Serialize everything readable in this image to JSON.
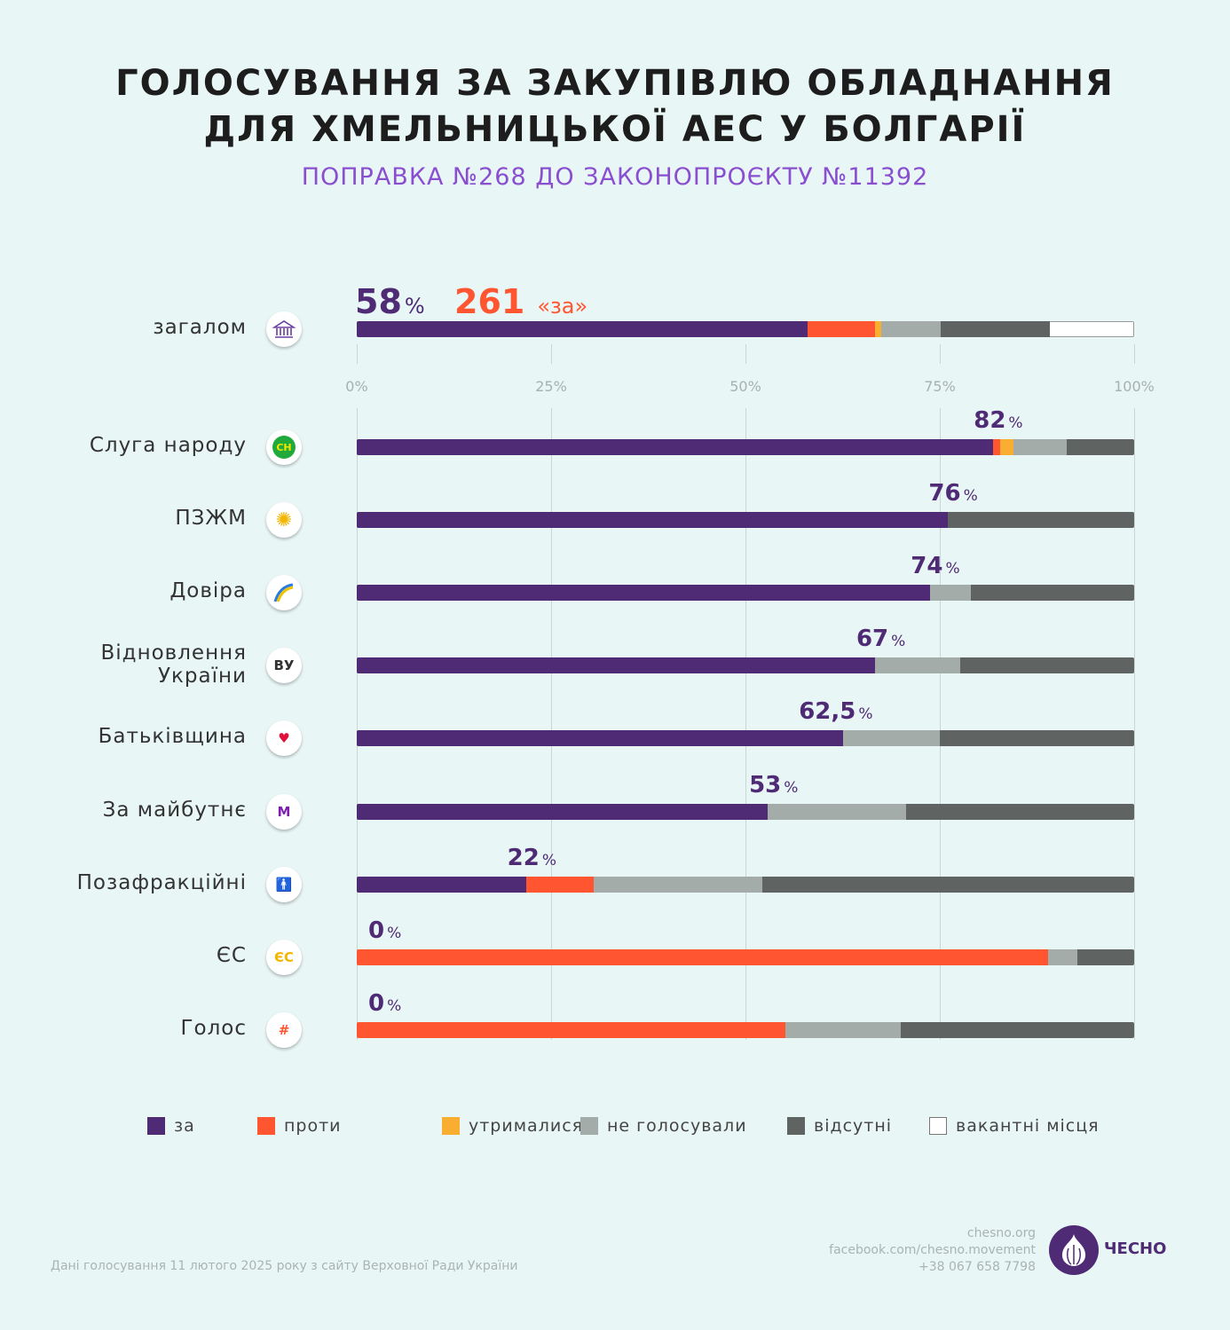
{
  "title_line1": "ГОЛОСУВАННЯ ЗА ЗАКУПІВЛЮ ОБЛАДНАННЯ",
  "title_line2": "ДЛЯ ХМЕЛЬНИЦЬКОЇ АЕС У БОЛГАРІЇ",
  "subtitle": "ПОПРАВКА №268 ДО ЗАКОНОПРОЄКТУ №11392",
  "chart_data": {
    "type": "bar",
    "orientation": "horizontal",
    "stacked": true,
    "xlim": [
      0,
      100
    ],
    "xticks": [
      "0%",
      "25%",
      "50%",
      "75%",
      "100%"
    ],
    "grid": true,
    "legend_position": "bottom",
    "series_names": [
      "за",
      "проти",
      "утрималися",
      "не голосували",
      "відсутні",
      "вакантні місця"
    ],
    "colors": [
      "#4f2a75",
      "#ff5530",
      "#f9ad31",
      "#a3aca8",
      "#5f6462",
      "#ffffff"
    ],
    "overall": {
      "label": "загалом",
      "icon": "parliament-icon",
      "pct_label": "58",
      "count": "261",
      "count_label": "«за»",
      "values": [
        58,
        8.7,
        0.8,
        7.6,
        14.1,
        10.8
      ]
    },
    "categories": [
      {
        "label": "Слуга народу",
        "icon": "sluha-narodu-logo-icon",
        "icon_text": "СН",
        "pct_label": "82",
        "values": [
          81.8,
          1.0,
          1.7,
          6.8,
          8.7,
          0
        ]
      },
      {
        "label": "ПЗЖМ",
        "icon": "sunflower-icon",
        "icon_text": "",
        "pct_label": "76",
        "values": [
          76,
          0,
          0,
          0,
          24,
          0
        ]
      },
      {
        "label": "Довіра",
        "icon": "dovira-arc-icon",
        "icon_text": "",
        "pct_label": "74",
        "values": [
          73.7,
          0,
          0,
          5.3,
          21,
          0
        ]
      },
      {
        "label": "Відновлення України",
        "icon": "vu-logo-icon",
        "icon_text": "ВУ",
        "pct_label": "67",
        "values": [
          66.7,
          0,
          0,
          10.9,
          22.4,
          0
        ]
      },
      {
        "label": "Батьківщина",
        "icon": "heart-icon",
        "icon_text": "♥",
        "pct_label": "62,5",
        "values": [
          62.5,
          0,
          0,
          12.5,
          25,
          0
        ]
      },
      {
        "label": "За майбутнє",
        "icon": "m-check-icon",
        "icon_text": "M",
        "pct_label": "53",
        "values": [
          52.9,
          0,
          0,
          17.8,
          29.3,
          0
        ]
      },
      {
        "label": "Позафракційні",
        "icon": "person-icon",
        "icon_text": "🚹",
        "pct_label": "22",
        "values": [
          21.8,
          8.7,
          0,
          21.7,
          47.8,
          0
        ]
      },
      {
        "label": "ЄС",
        "icon": "es-logo-icon",
        "icon_text": "ЄС",
        "pct_label": "0",
        "values": [
          0,
          88.9,
          0,
          3.8,
          7.3,
          0
        ]
      },
      {
        "label": "Голос",
        "icon": "holos-logo-icon",
        "icon_text": "#",
        "pct_label": "0",
        "values": [
          0,
          55.1,
          0,
          14.9,
          30,
          0
        ]
      }
    ],
    "pct_suffix": "%"
  },
  "footer": {
    "source": "Дані голосування 11 лютого 2025 року з сайту Верховної Ради України",
    "site": "chesno.org",
    "facebook": "facebook.com/chesno.movement",
    "phone": "+38 067 658 7798",
    "brand": "ЧЕСНО"
  }
}
